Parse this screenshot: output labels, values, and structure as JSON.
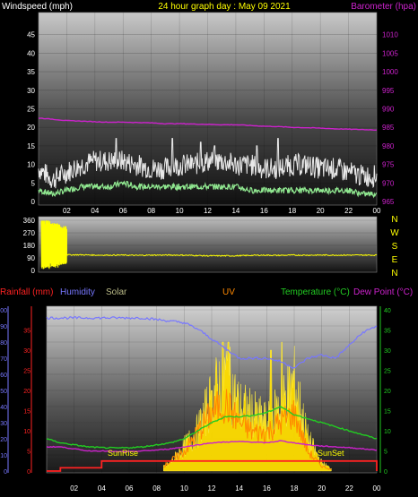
{
  "header": {
    "left": "Windspeed (mph)",
    "center": "24 hour graph day : May 09 2021",
    "right": "Barometer (hpa)"
  },
  "hours": [
    "02",
    "04",
    "06",
    "08",
    "10",
    "12",
    "14",
    "16",
    "18",
    "20",
    "22",
    "00"
  ],
  "direction_letters": [
    "N",
    "W",
    "S",
    "E",
    "N"
  ],
  "bottom_labels": {
    "rainfall": "Rainfall (mm)",
    "humidity": "Humidity",
    "solar": "Solar",
    "uv": "UV",
    "temperature": "Temperature (°C)",
    "dewpoint": "Dew Point (°C)",
    "sunrise": "SunRise",
    "sunset": "SunSet"
  },
  "colors": {
    "wind": "#e8e8e8",
    "gust_low": "#90e890",
    "barometer": "#cc22cc",
    "direction": "#ffff00",
    "rain": "#ff2222",
    "humidity": "#7777ff",
    "solar": "#ffdd00",
    "uv": "#ff8800",
    "temperature": "#22cc22",
    "dewpoint": "#cc22cc",
    "solar_label": "#bbbb88"
  },
  "chart_data": [
    {
      "type": "line",
      "title": "24 hour graph day : May 09 2021",
      "ylabel": "Windspeed (mph)",
      "ylim": [
        0,
        50
      ],
      "y2label": "Barometer (hpa)",
      "y2lim": [
        965,
        1015
      ],
      "y_ticks": [
        0,
        5,
        10,
        15,
        20,
        25,
        30,
        35,
        40,
        45
      ],
      "y2_ticks": [
        965,
        970,
        975,
        980,
        985,
        990,
        995,
        1000,
        1005,
        1010
      ],
      "x": [
        0,
        1,
        2,
        3,
        4,
        5,
        6,
        7,
        8,
        9,
        10,
        11,
        12,
        13,
        14,
        15,
        16,
        17,
        18,
        19,
        20,
        21,
        22,
        23,
        24
      ],
      "series": [
        {
          "name": "Windspeed",
          "values": [
            8,
            5,
            7,
            9,
            10,
            10,
            10,
            9,
            8,
            8,
            9,
            9,
            10,
            10,
            9,
            9,
            8,
            8,
            9,
            9,
            8,
            8,
            7,
            6,
            6
          ]
        },
        {
          "name": "Wind (low)",
          "values": [
            3,
            2,
            3,
            4,
            4,
            4,
            5,
            4,
            4,
            4,
            4,
            4,
            4,
            4,
            4,
            3,
            3,
            3,
            3,
            3,
            3,
            3,
            3,
            2,
            2
          ]
        },
        {
          "name": "Barometer",
          "values": [
            987.5,
            987.2,
            986.8,
            986.7,
            986.5,
            986.4,
            986.4,
            986.3,
            986.2,
            986.0,
            986.0,
            985.9,
            985.8,
            985.7,
            985.7,
            985.5,
            985.3,
            985.2,
            985.0,
            984.9,
            984.8,
            984.6,
            984.5,
            984.4,
            984.3
          ]
        }
      ],
      "gust_peaks": [
        [
          9.5,
          17
        ],
        [
          11.5,
          16
        ],
        [
          12.5,
          15
        ],
        [
          15.5,
          15
        ],
        [
          17,
          17
        ],
        [
          5.5,
          17
        ]
      ]
    },
    {
      "type": "line",
      "ylabel": "Wind direction",
      "ylim": [
        0,
        360
      ],
      "y_ticks": [
        0,
        90,
        180,
        270,
        360
      ],
      "x": [
        0,
        1,
        2,
        3,
        4,
        5,
        6,
        7,
        8,
        9,
        10,
        11,
        12,
        13,
        14,
        15,
        16,
        17,
        18,
        19,
        20,
        21,
        22,
        23,
        24
      ],
      "series": [
        {
          "name": "Direction",
          "values": [
            90,
            110,
            112,
            112,
            110,
            110,
            110,
            108,
            110,
            110,
            110,
            108,
            105,
            105,
            105,
            108,
            110,
            108,
            110,
            110,
            110,
            110,
            110,
            110,
            110
          ]
        }
      ],
      "early_spread": [
        [
          0.2,
          0.8,
          360,
          10
        ],
        [
          0.8,
          1.5,
          340,
          20
        ],
        [
          1.5,
          2.0,
          320,
          40
        ]
      ]
    },
    {
      "type": "line",
      "ylabel_left": "Humidity",
      "left_ticks": [
        0,
        10,
        20,
        30,
        40,
        50,
        60,
        70,
        80,
        90,
        100
      ],
      "rain_ticks": [
        0,
        5,
        10,
        15,
        20,
        25,
        30,
        35
      ],
      "ylabel_right": "Temperature (°C)",
      "right_ticks": [
        0,
        5,
        10,
        15,
        20,
        25,
        30,
        35,
        40
      ],
      "x": [
        0,
        1,
        2,
        3,
        4,
        5,
        6,
        7,
        8,
        9,
        10,
        11,
        12,
        13,
        14,
        15,
        16,
        17,
        18,
        19,
        20,
        21,
        22,
        23,
        24
      ],
      "series": [
        {
          "name": "Humidity",
          "values": [
            95,
            95,
            95,
            95,
            95,
            95,
            95,
            95,
            94,
            93,
            92,
            88,
            82,
            76,
            70,
            70,
            70,
            68,
            64,
            70,
            72,
            70,
            78,
            86,
            90
          ]
        },
        {
          "name": "Temperature",
          "values": [
            8,
            7,
            6.5,
            6,
            5.8,
            5.7,
            5.8,
            6,
            6.5,
            7,
            8,
            10,
            12,
            13.5,
            13.5,
            13.8,
            14.5,
            16,
            14,
            13,
            12,
            11,
            10,
            9,
            8
          ]
        },
        {
          "name": "Dew Point",
          "values": [
            6,
            6,
            5.5,
            5,
            5,
            4.8,
            4.8,
            5,
            5.2,
            5.5,
            6,
            6.5,
            7,
            7.2,
            7.3,
            7.2,
            7,
            7.5,
            7,
            6.5,
            6.2,
            6,
            5.8,
            5.5,
            5.2
          ]
        },
        {
          "name": "Rainfall",
          "values": [
            0,
            0.8,
            0.8,
            0.8,
            2.5,
            2.5,
            2.5,
            2.5,
            2.5,
            2.5,
            2.5,
            2.5,
            2.5,
            2.5,
            2.5,
            2.5,
            2.5,
            2.5,
            2.5,
            2.5,
            2.5,
            2.5,
            2.5,
            2.5,
            2.5
          ]
        },
        {
          "name": "Solar",
          "values": [
            0,
            0,
            0,
            0,
            0,
            0,
            0,
            0,
            0,
            5,
            15,
            25,
            45,
            60,
            40,
            35,
            30,
            40,
            55,
            20,
            5,
            0,
            0,
            0,
            0
          ]
        },
        {
          "name": "UV",
          "values": [
            0,
            0,
            0,
            0,
            0,
            0,
            0,
            0,
            0,
            1,
            2,
            4,
            6,
            7,
            5,
            4,
            4,
            5,
            6,
            2,
            0.5,
            0,
            0,
            0,
            0
          ]
        }
      ],
      "solar_peaks": [
        [
          12.0,
          50
        ],
        [
          12.8,
          80
        ],
        [
          13.2,
          80
        ],
        [
          16.3,
          75
        ],
        [
          17.1,
          80
        ]
      ],
      "sunrise_hour": 8.5,
      "sunset_hour": 20.7
    }
  ]
}
